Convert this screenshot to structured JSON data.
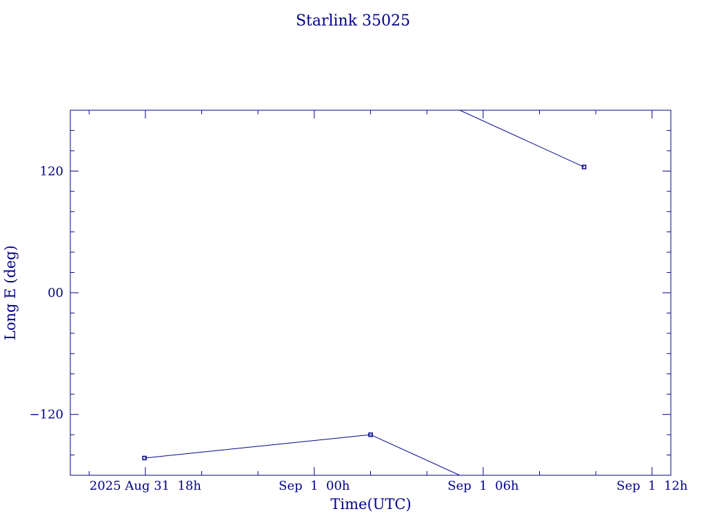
{
  "chart_data": {
    "type": "line",
    "title": "Starlink 35025",
    "xlabel": "Time(UTC)",
    "ylabel": "Long E (deg)",
    "x_start": "2025-08-31T15:20:00Z",
    "x_end": "2025-09-01T12:40:00Z",
    "ylim": [
      -180,
      180
    ],
    "x_ticks": [
      {
        "t": "2025-08-31T18:00:00Z",
        "label": "2025 Aug 31  18h"
      },
      {
        "t": "2025-09-01T00:00:00Z",
        "label": "Sep  1  00h"
      },
      {
        "t": "2025-09-01T06:00:00Z",
        "label": "Sep  1  06h"
      },
      {
        "t": "2025-09-01T12:00:00Z",
        "label": "Sep  1  12h"
      }
    ],
    "y_ticks": [
      {
        "v": 120,
        "label": "120"
      },
      {
        "v": 0,
        "label": "00"
      },
      {
        "v": -120,
        "label": "−120"
      }
    ],
    "series": [
      {
        "points": [
          {
            "t": "2025-08-31T17:58:00Z",
            "y": -163
          },
          {
            "t": "2025-09-01T02:00:00Z",
            "y": -140
          },
          {
            "t": "2025-09-01T05:20:00Z",
            "y": 180
          }
        ]
      }
    ],
    "markers": [
      {
        "t": "2025-08-31T17:58:00Z",
        "y": -163
      },
      {
        "t": "2025-09-01T02:00:00Z",
        "y": -140
      },
      {
        "t": "2025-09-01T09:35:00Z",
        "y": 124
      }
    ],
    "segments": [
      [
        {
          "t": "2025-08-31T17:58:00Z",
          "y": -163
        },
        {
          "t": "2025-09-01T02:00:00Z",
          "y": -140
        },
        {
          "t": "2025-09-01T05:10:00Z",
          "y": -180
        }
      ],
      [
        {
          "t": "2025-09-01T05:10:00Z",
          "y": 180
        },
        {
          "t": "2025-09-01T09:35:00Z",
          "y": 124
        }
      ]
    ],
    "color": "#00008b",
    "grid": false
  }
}
